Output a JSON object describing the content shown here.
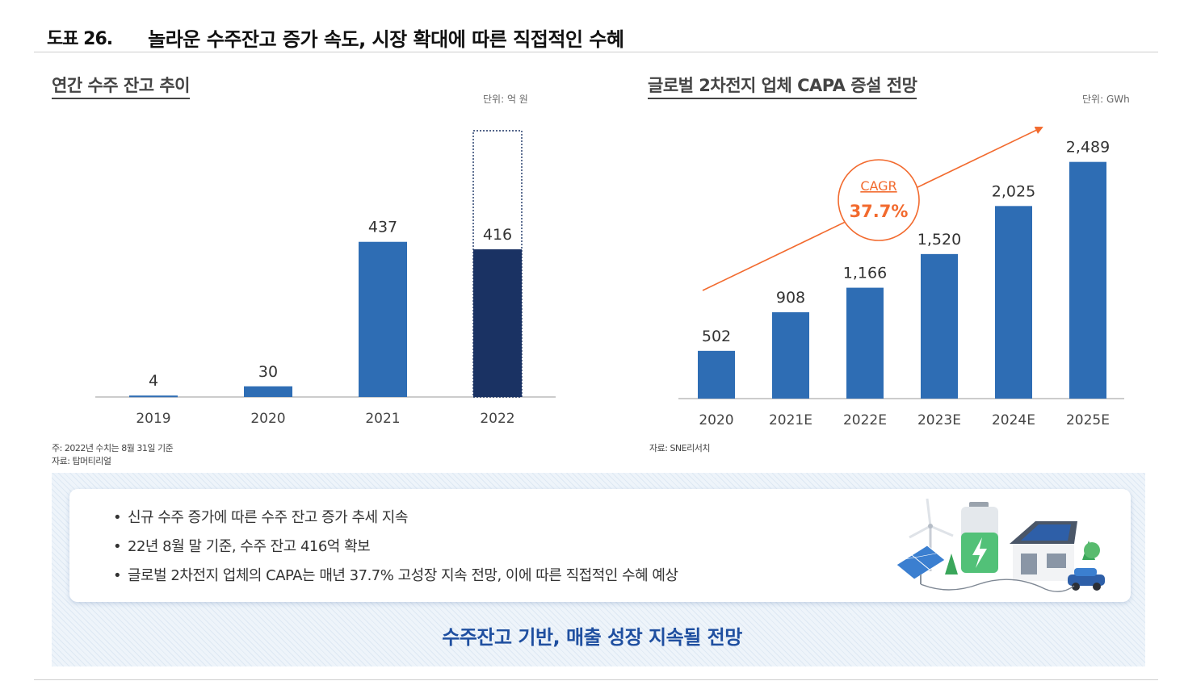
{
  "figure": {
    "number": "도표 26.",
    "title": "놀라운 수주잔고 증가 속도, 시장 확대에 따른 직접적인 수혜"
  },
  "left_panel": {
    "title": "연간 수주 잔고 추이",
    "unit": "단위: 억 원",
    "note_lines": [
      "주: 2022년 수치는 8월 31일 기준",
      "자료: 탑머티리얼"
    ]
  },
  "right_panel": {
    "title": "글로벌 2차전지 업체 CAPA 증설 전망",
    "unit": "단위: GWh",
    "cagr_label": "CAGR",
    "cagr_value": "37.7%",
    "note_lines": [
      "자료: SNE리서치"
    ]
  },
  "chart_data": [
    {
      "type": "bar",
      "title": "연간 수주 잔고 추이",
      "categories": [
        "2019",
        "2020",
        "2021",
        "2022"
      ],
      "values": [
        4,
        30,
        437,
        416
      ],
      "labels": [
        "4",
        "30",
        "437",
        "416"
      ],
      "ylabel": "억 원",
      "ylim": [
        0,
        750
      ],
      "highlight_category": "2022",
      "projected_total_outline": 750,
      "grid": false
    },
    {
      "type": "bar",
      "title": "글로벌 2차전지 업체 CAPA 증설 전망",
      "categories": [
        "2020",
        "2021E",
        "2022E",
        "2023E",
        "2024E",
        "2025E"
      ],
      "values": [
        502,
        908,
        1166,
        1520,
        2025,
        2489
      ],
      "labels": [
        "502",
        "908",
        "1,166",
        "1,520",
        "2,025",
        "2,489"
      ],
      "ylabel": "GWh",
      "ylim": [
        0,
        2800
      ],
      "annotation": "CAGR 37.7%",
      "grid": false
    }
  ],
  "summary": {
    "bullets": [
      "신규 수주 증가에 따른 수주 잔고 증가 추세 지속",
      "22년 8월 말 기준, 수주 잔고 416억 확보",
      "글로벌 2차전지 업체의 CAPA는 매년 37.7% 고성장 지속 전망, 이에 따른 직접적인 수혜 예상"
    ],
    "conclusion": "수주잔고 기반, 매출 성장 지속될 전망"
  },
  "colors": {
    "bar": "#2e6db4",
    "bar_highlight": "#1a3263",
    "cagr": "#f26a2e",
    "axis": "#cccccc",
    "conclusion": "#1f4fa0"
  }
}
